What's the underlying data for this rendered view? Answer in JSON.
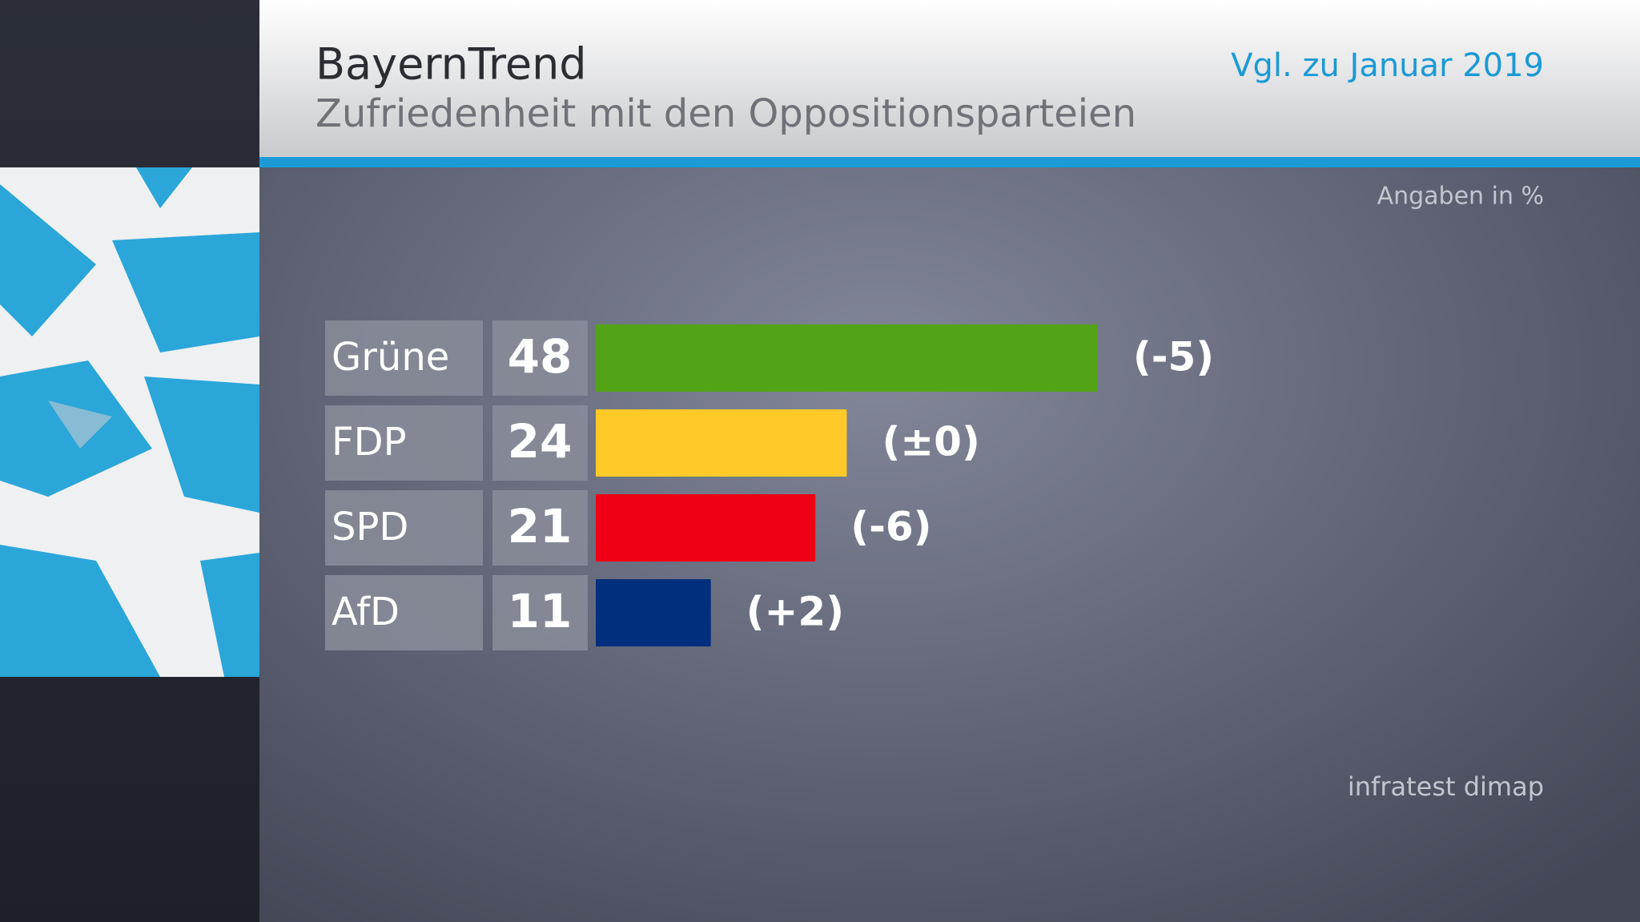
{
  "header": {
    "title": "BayernTrend",
    "subtitle": "Zufriedenheit mit den Oppositionsparteien",
    "comparison": "Vgl. zu Januar 2019"
  },
  "chart_data": {
    "type": "bar",
    "unit_note": "Angaben in %",
    "categories": [
      "Grüne",
      "FDP",
      "SPD",
      "AfD"
    ],
    "values": [
      48,
      24,
      21,
      11
    ],
    "colors": [
      "#52a416",
      "#ffc928",
      "#f00014",
      "#012f7d"
    ],
    "changes": [
      "(-5)",
      "(±0)",
      "(-6)",
      "(+2)"
    ]
  },
  "footer": {
    "source": "infratest dimap"
  }
}
